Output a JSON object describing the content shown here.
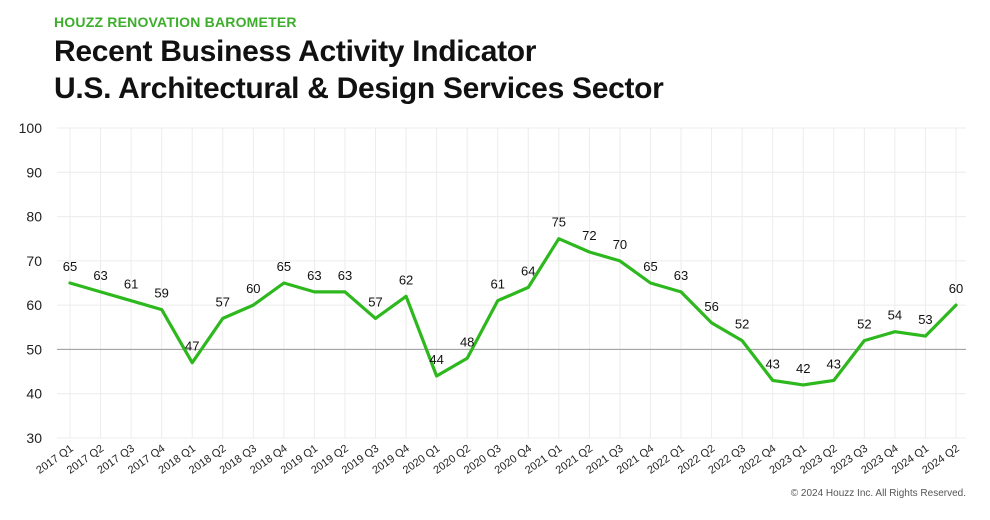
{
  "header": {
    "kicker": "HOUZZ RENOVATION BAROMETER",
    "title_line1": "Recent Business Activity Indicator",
    "title_line2": "U.S. Architectural & Design Services Sector"
  },
  "footer": {
    "copyright": "© 2024 Houzz Inc. All Rights Reserved."
  },
  "chart_data": {
    "type": "line",
    "title": "Recent Business Activity Indicator U.S. Architectural & Design Services Sector",
    "xlabel": "",
    "ylabel": "",
    "ylim": [
      30,
      100
    ],
    "yticks": [
      30,
      40,
      50,
      60,
      70,
      80,
      90,
      100
    ],
    "reference_line": 50,
    "grid": true,
    "line_color": "#2db81e",
    "categories": [
      "2017 Q1",
      "2017 Q2",
      "2017 Q3",
      "2017 Q4",
      "2018 Q1",
      "2018 Q2",
      "2018 Q3",
      "2018 Q4",
      "2019 Q1",
      "2019 Q2",
      "2019 Q3",
      "2019 Q4",
      "2020 Q1",
      "2020 Q2",
      "2020 Q3",
      "2020 Q4",
      "2021 Q1",
      "2021 Q2",
      "2021 Q3",
      "2021 Q4",
      "2022 Q1",
      "2022 Q2",
      "2022 Q3",
      "2022 Q4",
      "2023 Q1",
      "2023 Q2",
      "2023 Q3",
      "2023 Q4",
      "2024 Q1",
      "2024 Q2"
    ],
    "series": [
      {
        "values": [
          65,
          63,
          61,
          59,
          47,
          57,
          60,
          65,
          63,
          63,
          57,
          62,
          44,
          48,
          61,
          64,
          75,
          72,
          70,
          65,
          63,
          56,
          52,
          43,
          42,
          43,
          52,
          54,
          53,
          60
        ]
      }
    ]
  }
}
